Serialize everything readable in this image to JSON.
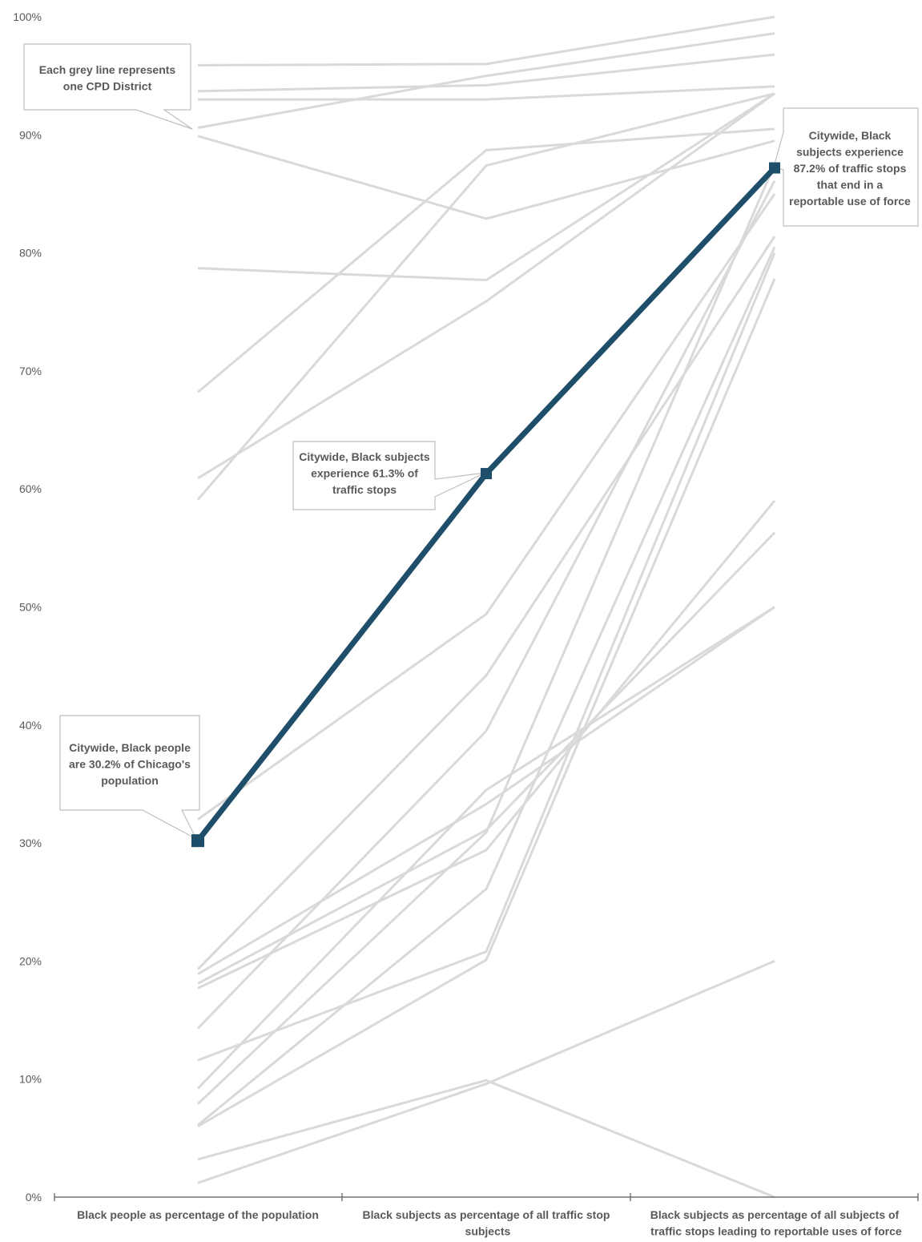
{
  "chart_data": {
    "type": "line",
    "title": "",
    "xlabel": "",
    "ylabel": "",
    "ylim": [
      0,
      100
    ],
    "y_tick_labels": [
      "0%",
      "10%",
      "20%",
      "30%",
      "40%",
      "50%",
      "60%",
      "70%",
      "80%",
      "90%",
      "100%"
    ],
    "y_tick_values": [
      0,
      10,
      20,
      30,
      40,
      50,
      60,
      70,
      80,
      90,
      100
    ],
    "categories": [
      "Black people as percentage of the population",
      "Black subjects as percentage of all traffic stop subjects",
      "Black subjects as percentage of all subjects of traffic stops leading to reportable uses of force"
    ],
    "grid": false,
    "colors": {
      "district": "#d9d9d9",
      "citywide": "#1f4e6b",
      "text": "#595959",
      "axis": "#595959",
      "callout_border": "#bfbfbf"
    },
    "districts": [
      {
        "values": [
          95.9,
          96.0,
          100.0
        ]
      },
      {
        "values": [
          93.7,
          94.2,
          96.8
        ]
      },
      {
        "values": [
          93.0,
          93.0,
          94.1
        ]
      },
      {
        "values": [
          90.6,
          95.0,
          98.6
        ]
      },
      {
        "values": [
          89.9,
          82.9,
          89.5
        ]
      },
      {
        "values": [
          78.7,
          77.7,
          93.5
        ]
      },
      {
        "values": [
          68.2,
          88.7,
          90.5
        ]
      },
      {
        "values": [
          60.9,
          75.9,
          93.5
        ]
      },
      {
        "values": [
          59.1,
          87.4,
          93.5
        ]
      },
      {
        "values": [
          32.0,
          49.4,
          85.0
        ]
      },
      {
        "values": [
          19.3,
          44.2,
          81.4
        ]
      },
      {
        "values": [
          18.9,
          33.3,
          50.0
        ]
      },
      {
        "values": [
          18.1,
          31.1,
          56.3
        ]
      },
      {
        "values": [
          17.7,
          29.4,
          59.0
        ]
      },
      {
        "values": [
          14.3,
          39.5,
          86.1
        ]
      },
      {
        "values": [
          11.6,
          20.8,
          80.0
        ]
      },
      {
        "values": [
          9.2,
          34.5,
          50.0
        ]
      },
      {
        "values": [
          7.9,
          30.9,
          87.5
        ]
      },
      {
        "values": [
          6.1,
          26.1,
          80.5
        ]
      },
      {
        "values": [
          6.0,
          20.1,
          77.8
        ]
      },
      {
        "values": [
          3.2,
          9.9,
          0.0
        ]
      },
      {
        "values": [
          1.2,
          9.6,
          20.0
        ]
      }
    ],
    "citywide": {
      "values": [
        30.2,
        61.3,
        87.2
      ]
    },
    "annotations": [
      {
        "id": "district-note",
        "lines": [
          "Each grey line represents",
          "one CPD District"
        ]
      },
      {
        "id": "pop-note",
        "lines": [
          "Citywide, Black people",
          "are 30.2% of Chicago's",
          "population"
        ]
      },
      {
        "id": "stops-note",
        "lines": [
          "Citywide, Black subjects",
          "experience 61.3% of",
          "traffic stops"
        ]
      },
      {
        "id": "force-note",
        "lines": [
          "Citywide, Black",
          "subjects experience",
          "87.2% of traffic stops",
          "that end in a",
          "reportable use of force"
        ]
      }
    ]
  }
}
